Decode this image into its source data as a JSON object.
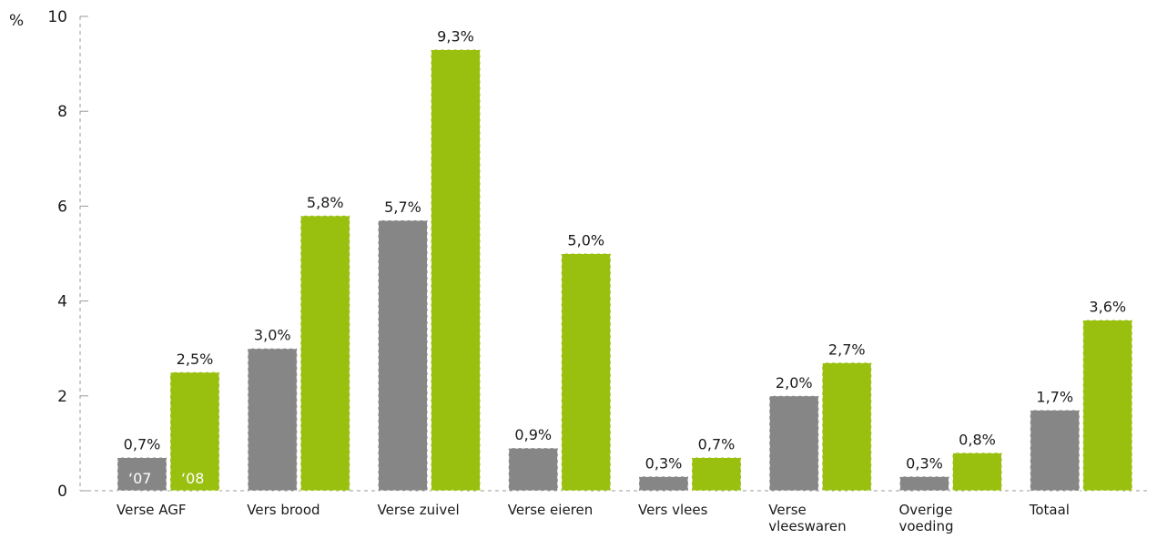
{
  "chart_data": {
    "type": "bar",
    "y_unit": "%",
    "ylim": [
      0,
      10
    ],
    "yticks": [
      "0",
      "2",
      "4",
      "6",
      "8",
      "10"
    ],
    "ytick_values": [
      0,
      2,
      4,
      6,
      8,
      10
    ],
    "grid": false,
    "categories": [
      [
        "Verse AGF"
      ],
      [
        "Vers brood"
      ],
      [
        "Verse zuivel"
      ],
      [
        "Verse eieren"
      ],
      [
        "Vers vlees"
      ],
      [
        "Verse",
        "vleeswaren"
      ],
      [
        "Overige",
        "voeding"
      ],
      [
        "Totaal"
      ]
    ],
    "series": [
      {
        "name": "‘07",
        "color": "#868686",
        "values": [
          0.7,
          3.0,
          5.7,
          0.9,
          0.3,
          2.0,
          0.3,
          1.7
        ],
        "labels": [
          "0,7%",
          "3,0%",
          "5,7%",
          "0,9%",
          "0,3%",
          "2,0%",
          "0,3%",
          "1,7%"
        ]
      },
      {
        "name": "‘08",
        "color": "#99bf0f",
        "values": [
          2.5,
          5.8,
          9.3,
          5.0,
          0.7,
          2.7,
          0.8,
          3.6
        ],
        "labels": [
          "2,5%",
          "5,8%",
          "9,3%",
          "5,0%",
          "0,7%",
          "2,7%",
          "0,8%",
          "3,6%"
        ]
      }
    ]
  }
}
